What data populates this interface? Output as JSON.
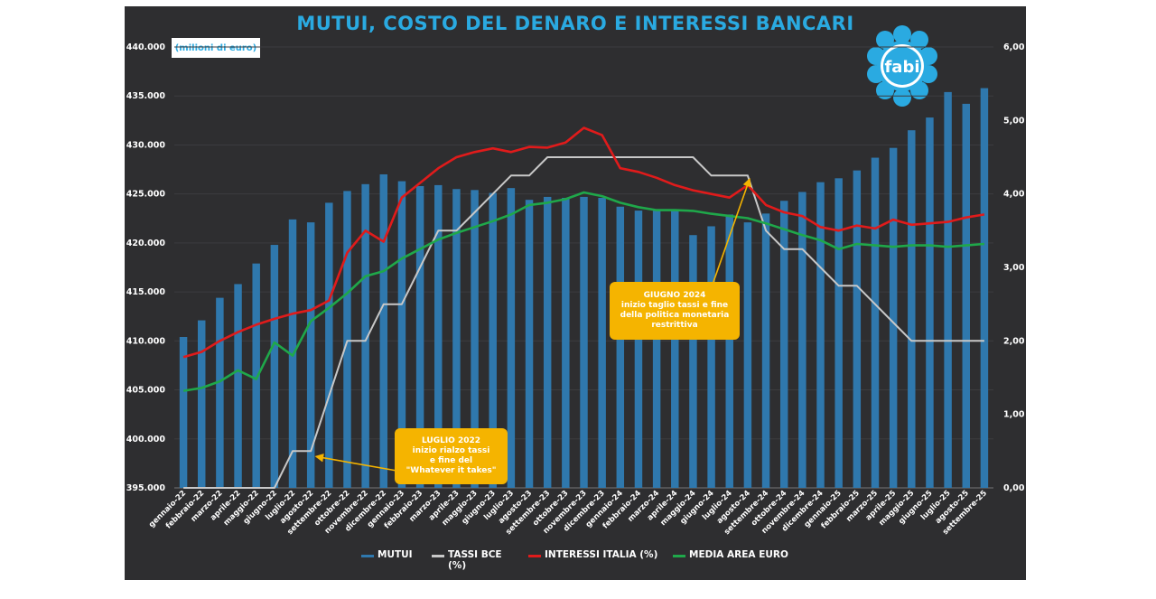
{
  "title": "MUTUI, COSTO DEL DENARO E INTERESSI BANCARI",
  "unit_label": "(milioni di euro)",
  "logo_text": "fabi",
  "colors": {
    "background": "#2e2e30",
    "title": "#2aaae1",
    "mutui": "#2f78ad",
    "tassi_bce": "#c8c8c8",
    "interessi_italia": "#e01b1b",
    "media_area_euro": "#1fa84a",
    "annotation": "#f5b400"
  },
  "annotations": [
    {
      "id": "lug",
      "lines": [
        "LUGLIO 2022",
        "inizio rialzo tassi",
        "e fine del",
        "\"Whatever it takes\""
      ]
    },
    {
      "id": "giu",
      "lines": [
        "GIUGNO 2024",
        "inizio taglio tassi e fine",
        "della politica monetaria",
        "restrittiva"
      ]
    }
  ],
  "legend": [
    {
      "key": "mutui",
      "label": "MUTUI",
      "color": "#2f78ad"
    },
    {
      "key": "tassi_bce",
      "label": "TASSI BCE (%)",
      "color": "#c8c8c8"
    },
    {
      "key": "interessi_italia",
      "label": "INTERESSI ITALIA (%)",
      "color": "#e01b1b"
    },
    {
      "key": "media_area_euro",
      "label": "MEDIA AREA EURO",
      "color": "#1fa84a"
    }
  ],
  "chart_data": {
    "type": "bar+line",
    "title": "MUTUI, COSTO DEL DENARO E INTERESSI BANCARI",
    "y_left": {
      "label": "(milioni di euro)",
      "min": 395000,
      "max": 440000,
      "ticks": [
        "395.000",
        "400.000",
        "405.000",
        "410.000",
        "415.000",
        "420.000",
        "425.000",
        "430.000",
        "435.000",
        "440.000"
      ]
    },
    "y_right": {
      "min": 0,
      "max": 6,
      "ticks": [
        "0,00",
        "1,00",
        "2,00",
        "3,00",
        "4,00",
        "5,00",
        "6,00"
      ]
    },
    "categories": [
      "gennaio-22",
      "febbraio-22",
      "marzo-22",
      "aprile-22",
      "maggio-22",
      "giugno-22",
      "luglio-22",
      "agosto-22",
      "settembre-22",
      "ottobre-22",
      "novembre-22",
      "dicembre-22",
      "gennaio-23",
      "febbraio-23",
      "marzo-23",
      "aprile-23",
      "maggio-23",
      "giugno-23",
      "luglio-23",
      "agosto-23",
      "settembre-23",
      "ottobre-23",
      "novembre-23",
      "dicembre-23",
      "gennaio-24",
      "febbraio-24",
      "marzo-24",
      "aprile-24",
      "maggio-24",
      "giugno-24",
      "luglio-24",
      "agosto-24",
      "settembre-24",
      "ottobre-24",
      "novembre-24",
      "dicembre-24",
      "gennaio-25",
      "febbraio-25",
      "marzo-25",
      "aprile-25",
      "maggio-25",
      "giugno-25",
      "luglio-25",
      "agosto-25",
      "settembre-25"
    ],
    "series": [
      {
        "name": "MUTUI",
        "type": "bar",
        "axis": "left",
        "values": [
          410400,
          412100,
          414400,
          415800,
          417900,
          419800,
          422400,
          422100,
          424100,
          425300,
          426000,
          427000,
          426300,
          425800,
          425900,
          425500,
          425400,
          425100,
          425600,
          424400,
          424700,
          424600,
          424700,
          424600,
          423700,
          423300,
          423300,
          423300,
          420800,
          421700,
          422900,
          422100,
          423000,
          424300,
          425200,
          426200,
          426600,
          427400,
          428700,
          429700,
          431500,
          432800,
          435400,
          434200,
          435800
        ]
      },
      {
        "name": "TASSI BCE (%)",
        "type": "line",
        "axis": "right",
        "values": [
          0,
          0,
          0,
          0,
          0,
          0,
          0.5,
          0.5,
          1.25,
          2.0,
          2.0,
          2.5,
          2.5,
          3.0,
          3.5,
          3.5,
          3.75,
          4.0,
          4.25,
          4.25,
          4.5,
          4.5,
          4.5,
          4.5,
          4.5,
          4.5,
          4.5,
          4.5,
          4.5,
          4.25,
          4.25,
          4.25,
          3.5,
          3.25,
          3.25,
          3.0,
          2.75,
          2.75,
          2.5,
          2.25,
          2.0,
          2.0,
          2.0,
          2.0,
          2.0
        ]
      },
      {
        "name": "INTERESSI ITALIA (%)",
        "type": "line",
        "axis": "right",
        "values": [
          1.78,
          1.85,
          2.0,
          2.12,
          2.22,
          2.3,
          2.37,
          2.42,
          2.55,
          3.2,
          3.5,
          3.35,
          3.95,
          4.15,
          4.35,
          4.5,
          4.57,
          4.62,
          4.57,
          4.64,
          4.63,
          4.7,
          4.9,
          4.8,
          4.35,
          4.3,
          4.22,
          4.12,
          4.05,
          4.0,
          3.95,
          4.12,
          3.85,
          3.75,
          3.7,
          3.55,
          3.5,
          3.57,
          3.53,
          3.65,
          3.58,
          3.6,
          3.62,
          3.68,
          3.72
        ]
      },
      {
        "name": "MEDIA AREA EURO",
        "type": "line",
        "axis": "right",
        "values": [
          1.32,
          1.36,
          1.45,
          1.6,
          1.48,
          1.98,
          1.8,
          2.27,
          2.45,
          2.65,
          2.88,
          2.95,
          3.12,
          3.25,
          3.38,
          3.47,
          3.55,
          3.63,
          3.72,
          3.85,
          3.88,
          3.93,
          4.02,
          3.97,
          3.88,
          3.82,
          3.78,
          3.78,
          3.77,
          3.73,
          3.7,
          3.67,
          3.6,
          3.52,
          3.44,
          3.37,
          3.25,
          3.32,
          3.3,
          3.28,
          3.3,
          3.3,
          3.28,
          3.3,
          3.32
        ]
      }
    ]
  }
}
